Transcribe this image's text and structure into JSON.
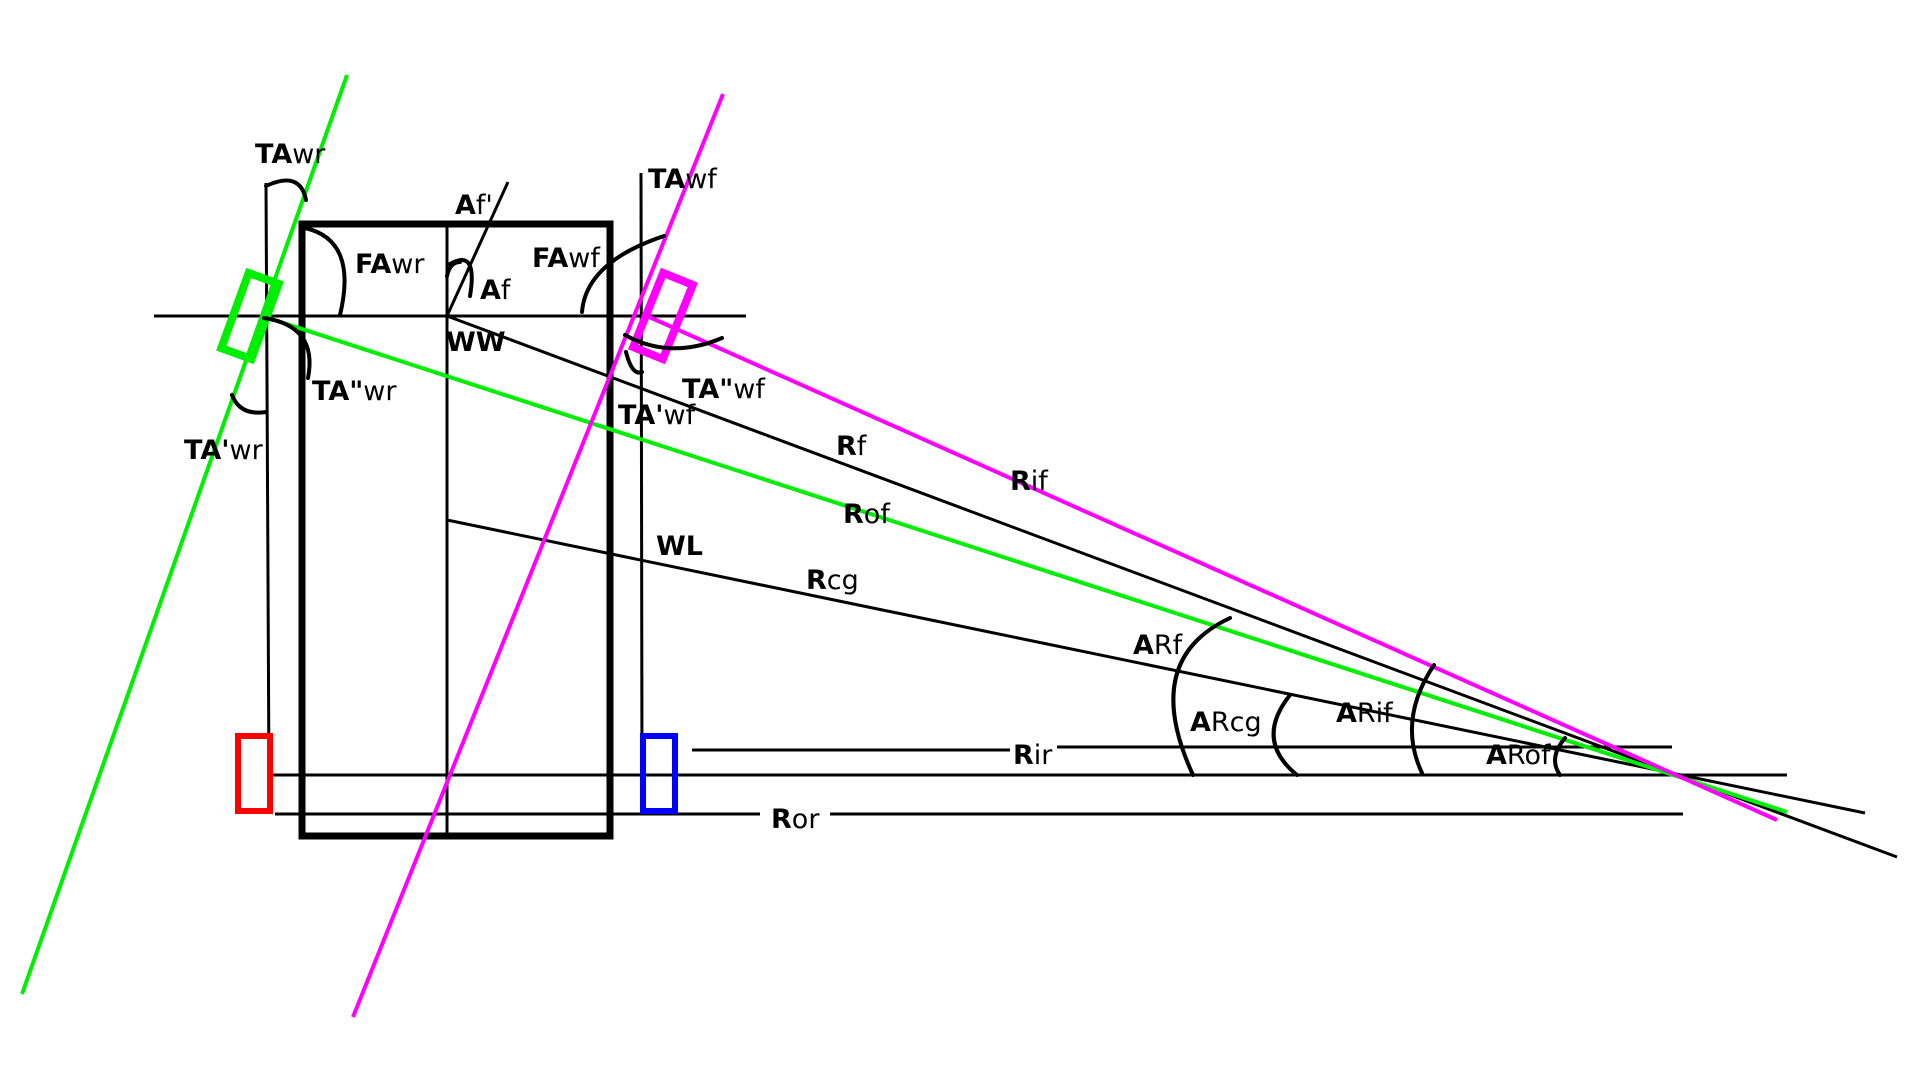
{
  "colors": {
    "background": "#ffffff",
    "line": "#000000",
    "rear_wheel_outer": "#00ee00",
    "front_wheel_outer": "#ff00ff",
    "rear_inner_wheel": "#ff0000",
    "front_inner_wheel": "#0000ff"
  },
  "labels": {
    "ta_wr": {
      "bold": "TA",
      "rest": "wr"
    },
    "fa_wr": {
      "bold": "FA",
      "rest": "wr"
    },
    "af_prime": {
      "bold": "A",
      "rest": "f'"
    },
    "af": {
      "bold": "A",
      "rest": "f"
    },
    "ta_wf": {
      "bold": "TA",
      "rest": "wf"
    },
    "fa_wf": {
      "bold": "FA",
      "rest": "wf"
    },
    "ww": {
      "bold": "WW",
      "rest": ""
    },
    "ta2_wr": {
      "bold": "TA\"",
      "rest": "wr"
    },
    "ta1_wr": {
      "bold": "TA'",
      "rest": "wr"
    },
    "ta2_wf": {
      "bold": "TA\"",
      "rest": "wf"
    },
    "ta1_wf": {
      "bold": "TA'",
      "rest": "wf"
    },
    "rf": {
      "bold": "R",
      "rest": "f"
    },
    "rif": {
      "bold": "R",
      "rest": "if"
    },
    "rof": {
      "bold": "R",
      "rest": "of"
    },
    "wl": {
      "bold": "WL",
      "rest": ""
    },
    "rcg": {
      "bold": "R",
      "rest": "cg"
    },
    "arf": {
      "bold": "A",
      "rest": "Rf"
    },
    "arcg": {
      "bold": "A",
      "rest": "Rcg"
    },
    "arif": {
      "bold": "A",
      "rest": "Rif"
    },
    "arof": {
      "bold": "A",
      "rest": "Rof"
    },
    "rir": {
      "bold": "R",
      "rest": "ir"
    },
    "ror": {
      "bold": "R",
      "rest": "or"
    }
  }
}
